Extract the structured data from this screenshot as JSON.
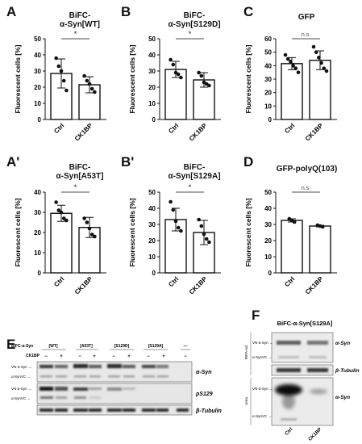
{
  "panel_letters": {
    "a": "A",
    "b": "B",
    "c": "C",
    "a2": "A'",
    "b2": "B'",
    "d": "D",
    "e": "E",
    "f": "F"
  },
  "charts": [
    {
      "title_lines": [
        "BiFC-",
        "α-Syn[WT]"
      ],
      "ylabel": "Fluorescent cells [%]",
      "yticks": [
        0,
        10,
        20,
        30,
        40,
        50
      ],
      "categories": [
        "Ctrl",
        "CK1BP"
      ],
      "bar_values": [
        28.5,
        21.5
      ],
      "sig": "*"
    },
    {
      "title_lines": [
        "BiFC-",
        "α-Syn[S129D]"
      ],
      "ylabel": "Fluorescent cells [%]",
      "yticks": [
        0,
        10,
        20,
        30,
        40,
        50
      ],
      "categories": [
        "Ctrl",
        "CK1BP"
      ],
      "bar_values": [
        31,
        24.5
      ],
      "sig": "*"
    },
    {
      "title_lines": [
        "GFP"
      ],
      "ylabel": "Fluorescent cells [%]",
      "yticks": [
        0,
        10,
        20,
        30,
        40,
        50,
        60
      ],
      "categories": [
        "Ctrl",
        "CK1BP"
      ],
      "bar_values": [
        41.5,
        44
      ],
      "sig": "n.s."
    },
    {
      "title_lines": [
        "BiFC-",
        "α-Syn[A53T]"
      ],
      "ylabel": "Fluorescent cells [%]",
      "yticks": [
        0,
        10,
        20,
        30,
        40
      ],
      "categories": [
        "Ctrl",
        "CK1BP"
      ],
      "bar_values": [
        29.5,
        22.5
      ],
      "sig": "*"
    },
    {
      "title_lines": [
        "BiFC-",
        "α-Syn[S129A]"
      ],
      "ylabel": "Fluorescent cells [%]",
      "yticks": [
        0,
        10,
        20,
        30,
        40,
        50
      ],
      "categories": [
        "Ctrl",
        "CK1BP"
      ],
      "bar_values": [
        33,
        25
      ],
      "sig": "*"
    },
    {
      "title_lines": [
        "GFP-polyQ(103)"
      ],
      "ylabel": "Fluorescent cells [%]",
      "yticks": [
        0,
        10,
        20,
        30,
        40,
        50
      ],
      "categories": [
        "Ctrl",
        "CK1BP"
      ],
      "bar_values": [
        32.5,
        29
      ],
      "sig": "n.s."
    }
  ],
  "chart_data": [
    {
      "type": "bar",
      "categories": [
        "Ctrl",
        "CK1BP"
      ],
      "values": [
        28.5,
        21.5
      ],
      "sd": [
        9,
        5
      ],
      "points": [
        [
          38,
          33,
          30,
          24,
          18
        ],
        [
          27,
          24,
          22,
          19,
          17
        ]
      ],
      "ylim": [
        0,
        50
      ],
      "title": "BiFC-α-Syn[WT]",
      "ylabel": "Fluorescent cells [%]",
      "annotation": "*"
    },
    {
      "type": "bar",
      "categories": [
        "Ctrl",
        "CK1BP"
      ],
      "values": [
        31,
        24.5
      ],
      "sd": [
        5,
        4.5
      ],
      "points": [
        [
          37,
          34,
          29,
          28,
          26
        ],
        [
          29,
          27,
          23,
          22,
          21
        ]
      ],
      "ylim": [
        0,
        50
      ],
      "title": "BiFC-α-Syn[S129D]",
      "ylabel": "Fluorescent cells [%]",
      "annotation": "*"
    },
    {
      "type": "bar",
      "categories": [
        "Ctrl",
        "CK1BP"
      ],
      "values": [
        41.5,
        44
      ],
      "sd": [
        4.5,
        7
      ],
      "points": [
        [
          48,
          45,
          43,
          40,
          38,
          35
        ],
        [
          54,
          50,
          46,
          42,
          38,
          36
        ]
      ],
      "ylim": [
        0,
        60
      ],
      "title": "GFP",
      "ylabel": "Fluorescent cells [%]",
      "annotation": "n.s."
    },
    {
      "type": "bar",
      "categories": [
        "Ctrl",
        "CK1BP"
      ],
      "values": [
        29.5,
        22.5
      ],
      "sd": [
        4,
        5
      ],
      "points": [
        [
          35,
          31,
          30,
          27,
          26
        ],
        [
          27,
          25,
          22,
          19,
          18
        ]
      ],
      "ylim": [
        0,
        40
      ],
      "title": "BiFC-α-Syn[A53T]",
      "ylabel": "Fluorescent cells [%]",
      "annotation": "*"
    },
    {
      "type": "bar",
      "categories": [
        "Ctrl",
        "CK1BP"
      ],
      "values": [
        33,
        25
      ],
      "sd": [
        7,
        7.5
      ],
      "points": [
        [
          44,
          39,
          32,
          28,
          26
        ],
        [
          33,
          29,
          24,
          21,
          19
        ]
      ],
      "ylim": [
        0,
        50
      ],
      "title": "BiFC-α-Syn[S129A]",
      "ylabel": "Fluorescent cells [%]",
      "annotation": "*"
    },
    {
      "type": "bar",
      "categories": [
        "Ctrl",
        "CK1BP"
      ],
      "values": [
        32.5,
        29
      ],
      "sd": [
        1,
        0.5
      ],
      "points": [
        [
          33.5,
          32.5,
          31.5
        ],
        [
          29.5,
          29,
          28.5
        ]
      ],
      "ylim": [
        0,
        50
      ],
      "title": "GFP-polyQ(103)",
      "ylabel": "Fluorescent cells [%]",
      "annotation": "n.s."
    }
  ],
  "blot_e": {
    "construct_label": "BiFC-α-Syn",
    "ck1bp_label": "CK1BP",
    "groups": [
      "[WT]",
      "[A53T]",
      "[S129D]",
      "[S129A]",
      "—"
    ],
    "signs": [
      "−",
      "+",
      "−",
      "+",
      "−",
      "+",
      "−",
      "+",
      "−"
    ],
    "panel_labels": [
      "α-Syn",
      "pS129",
      "β-Tubulin"
    ],
    "band_labels": [
      "VN-α-Syn →",
      "α-SynVC →",
      "VN-α-Syn →",
      "α-SynVC →"
    ]
  },
  "blot_f": {
    "title": "BiFC-α-Syn[S129A]",
    "side_labels": [
      "RIPA-sol.",
      "Urea"
    ],
    "panel_labels": [
      "α-Syn",
      "β-Tubulin",
      "α-Syn"
    ],
    "band_labels": [
      "VN-α-Syn →",
      "α-SynVC →",
      "VN-α-Syn →",
      "α-SynVC →"
    ],
    "lanes": [
      "Ctrl",
      "CK1BP"
    ]
  }
}
